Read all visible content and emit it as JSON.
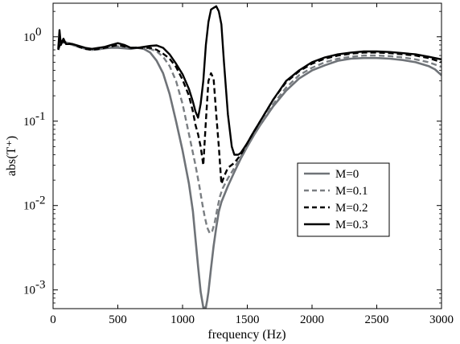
{
  "chart_data": {
    "type": "line",
    "title": "",
    "xlabel": "frequency (Hz)",
    "ylabel": "abs(T⁺)",
    "xlim": [
      0,
      3000
    ],
    "ylim": [
      0.0006,
      2.5
    ],
    "yscale": "log",
    "grid": false,
    "legend_position": "center-right",
    "x_ticks": [
      0,
      500,
      1000,
      1500,
      2000,
      2500,
      3000
    ],
    "x_tick_labels": [
      "0",
      "500",
      "1000",
      "1500",
      "2000",
      "2500",
      "3000"
    ],
    "y_ticks": [
      0.001,
      0.01,
      0.1,
      1
    ],
    "y_tick_labels": [
      {
        "base": "10",
        "exp": "-3"
      },
      {
        "base": "10",
        "exp": "-2"
      },
      {
        "base": "10",
        "exp": "-1"
      },
      {
        "base": "10",
        "exp": "0"
      }
    ],
    "series": [
      {
        "name": "M=0",
        "color": "#6f7378",
        "dash": "solid",
        "width": 2.6,
        "x": [
          40,
          60,
          100,
          150,
          200,
          250,
          300,
          350,
          400,
          450,
          500,
          550,
          600,
          650,
          700,
          750,
          800,
          850,
          900,
          950,
          1000,
          1050,
          1080,
          1100,
          1120,
          1140,
          1160,
          1180,
          1190,
          1200,
          1220,
          1240,
          1260,
          1280,
          1300,
          1350,
          1400,
          1450,
          1500,
          1550,
          1600,
          1700,
          1800,
          1900,
          2000,
          2100,
          2200,
          2300,
          2400,
          2500,
          2600,
          2700,
          2800,
          2900,
          2950,
          3000
        ],
        "y": [
          0.72,
          0.85,
          0.86,
          0.8,
          0.76,
          0.72,
          0.7,
          0.71,
          0.73,
          0.74,
          0.74,
          0.73,
          0.72,
          0.74,
          0.72,
          0.65,
          0.52,
          0.37,
          0.21,
          0.1,
          0.045,
          0.018,
          0.0085,
          0.004,
          0.0019,
          0.00095,
          0.00062,
          0.00062,
          0.00075,
          0.00095,
          0.0018,
          0.0033,
          0.0055,
          0.0085,
          0.011,
          0.017,
          0.025,
          0.036,
          0.05,
          0.068,
          0.09,
          0.15,
          0.23,
          0.32,
          0.4,
          0.46,
          0.52,
          0.55,
          0.56,
          0.56,
          0.55,
          0.53,
          0.5,
          0.45,
          0.41,
          0.35
        ]
      },
      {
        "name": "M=0.1",
        "color": "#7a7e82",
        "dash": "dashed",
        "width": 2.4,
        "x": [
          40,
          60,
          100,
          150,
          200,
          250,
          300,
          350,
          400,
          450,
          500,
          550,
          600,
          650,
          700,
          750,
          800,
          850,
          900,
          950,
          1000,
          1050,
          1100,
          1130,
          1150,
          1170,
          1190,
          1210,
          1230,
          1250,
          1270,
          1290,
          1310,
          1350,
          1400,
          1450,
          1500,
          1550,
          1600,
          1700,
          1800,
          1900,
          2000,
          2100,
          2200,
          2300,
          2400,
          2500,
          2600,
          2700,
          2800,
          2900,
          3000
        ],
        "y": [
          0.7,
          0.86,
          0.85,
          0.8,
          0.76,
          0.72,
          0.7,
          0.71,
          0.73,
          0.76,
          0.77,
          0.76,
          0.74,
          0.75,
          0.74,
          0.72,
          0.67,
          0.58,
          0.45,
          0.3,
          0.16,
          0.07,
          0.03,
          0.017,
          0.011,
          0.0075,
          0.0055,
          0.0047,
          0.005,
          0.0065,
          0.0095,
          0.013,
          0.016,
          0.021,
          0.028,
          0.038,
          0.05,
          0.068,
          0.09,
          0.16,
          0.25,
          0.35,
          0.43,
          0.5,
          0.55,
          0.58,
          0.6,
          0.6,
          0.59,
          0.57,
          0.54,
          0.5,
          0.44
        ]
      },
      {
        "name": "M=0.2",
        "color": "#000000",
        "dash": "dashed",
        "width": 2.4,
        "x": [
          40,
          60,
          100,
          150,
          200,
          250,
          300,
          350,
          400,
          450,
          500,
          550,
          600,
          650,
          700,
          750,
          800,
          850,
          900,
          950,
          1000,
          1050,
          1080,
          1100,
          1120,
          1140,
          1160,
          1180,
          1200,
          1220,
          1240,
          1260,
          1280,
          1300,
          1320,
          1350,
          1400,
          1450,
          1500,
          1550,
          1600,
          1700,
          1800,
          1900,
          2000,
          2100,
          2200,
          2300,
          2400,
          2500,
          2600,
          2700,
          2800,
          2900,
          3000
        ],
        "y": [
          0.7,
          0.9,
          0.85,
          0.82,
          0.76,
          0.72,
          0.7,
          0.72,
          0.74,
          0.77,
          0.8,
          0.77,
          0.74,
          0.74,
          0.74,
          0.74,
          0.7,
          0.63,
          0.55,
          0.44,
          0.31,
          0.2,
          0.13,
          0.09,
          0.07,
          0.05,
          0.03,
          0.1,
          0.3,
          0.37,
          0.32,
          0.12,
          0.05,
          0.018,
          0.022,
          0.028,
          0.032,
          0.04,
          0.055,
          0.075,
          0.1,
          0.18,
          0.29,
          0.39,
          0.48,
          0.55,
          0.6,
          0.63,
          0.65,
          0.65,
          0.64,
          0.62,
          0.6,
          0.56,
          0.5
        ]
      },
      {
        "name": "M=0.3",
        "color": "#000000",
        "dash": "solid",
        "width": 2.4,
        "x": [
          40,
          50,
          60,
          80,
          100,
          150,
          200,
          250,
          300,
          350,
          400,
          450,
          500,
          550,
          600,
          650,
          700,
          750,
          800,
          850,
          900,
          950,
          1000,
          1050,
          1080,
          1100,
          1120,
          1140,
          1160,
          1180,
          1200,
          1220,
          1240,
          1260,
          1280,
          1300,
          1320,
          1350,
          1380,
          1400,
          1430,
          1450,
          1500,
          1550,
          1600,
          1700,
          1800,
          1900,
          2000,
          2100,
          2200,
          2300,
          2400,
          2500,
          2600,
          2700,
          2800,
          2900,
          3000
        ],
        "y": [
          0.72,
          1.2,
          0.8,
          0.95,
          0.82,
          0.82,
          0.78,
          0.74,
          0.72,
          0.74,
          0.76,
          0.8,
          0.84,
          0.8,
          0.74,
          0.74,
          0.76,
          0.78,
          0.79,
          0.74,
          0.62,
          0.48,
          0.36,
          0.24,
          0.17,
          0.13,
          0.11,
          0.16,
          0.3,
          0.8,
          1.5,
          2.1,
          2.2,
          2.3,
          2.0,
          1.4,
          0.5,
          0.12,
          0.05,
          0.04,
          0.04,
          0.042,
          0.055,
          0.075,
          0.1,
          0.18,
          0.3,
          0.4,
          0.5,
          0.57,
          0.62,
          0.65,
          0.67,
          0.67,
          0.66,
          0.64,
          0.62,
          0.58,
          0.54
        ]
      }
    ]
  }
}
